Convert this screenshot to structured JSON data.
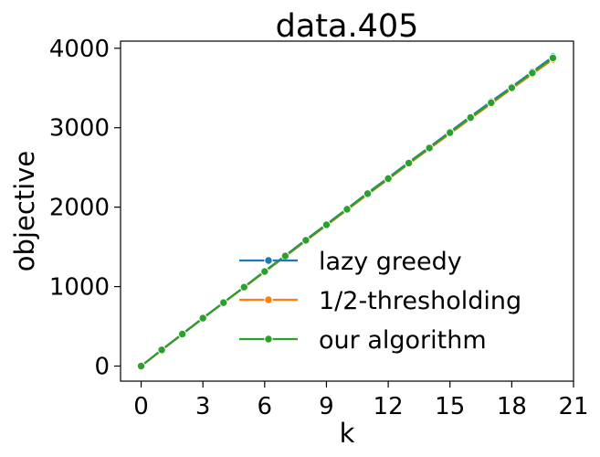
{
  "chart_data": {
    "type": "line",
    "title": "data.405",
    "xlabel": "k",
    "ylabel": "objective",
    "xlim": [
      -1,
      21
    ],
    "ylim": [
      -190,
      4090
    ],
    "xticks": [
      0,
      3,
      6,
      9,
      12,
      15,
      18,
      21
    ],
    "yticks": [
      0,
      1000,
      2000,
      3000,
      4000
    ],
    "grid": false,
    "legend_position": "lower-right",
    "x": [
      0,
      1,
      2,
      3,
      4,
      5,
      6,
      7,
      8,
      9,
      10,
      11,
      12,
      13,
      14,
      15,
      16,
      17,
      18,
      19,
      20
    ],
    "series": [
      {
        "name": "lazy greedy",
        "color": "#1f77b4",
        "marker": "circle",
        "values": [
          0,
          205,
          405,
          605,
          800,
          995,
          1195,
          1390,
          1590,
          1785,
          1980,
          2180,
          2370,
          2565,
          2755,
          2950,
          3140,
          3330,
          3515,
          3705,
          3895
        ]
      },
      {
        "name": "1/2-thresholding",
        "color": "#ff7f0e",
        "marker": "circle",
        "values": [
          0,
          200,
          400,
          600,
          795,
          990,
          1185,
          1380,
          1575,
          1770,
          1965,
          2160,
          2350,
          2545,
          2735,
          2925,
          3115,
          3300,
          3490,
          3675,
          3860
        ]
      },
      {
        "name": "our algorithm",
        "color": "#2ca02c",
        "marker": "circle",
        "values": [
          0,
          203,
          403,
          603,
          798,
          993,
          1190,
          1385,
          1583,
          1778,
          1973,
          2170,
          2360,
          2555,
          2745,
          2938,
          3128,
          3315,
          3503,
          3690,
          3878
        ]
      }
    ]
  }
}
